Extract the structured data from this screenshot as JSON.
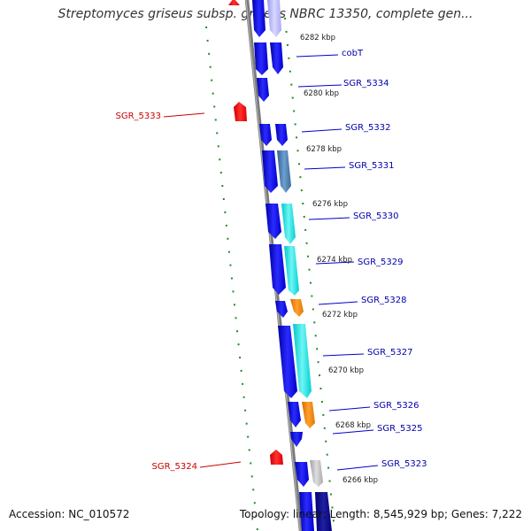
{
  "title": "Streptomyces griseus subsp. griseus NBRC 13350, complete gen...",
  "footer": {
    "accession": "Accession: NC_010572",
    "topology": "Topology: linear; Length: 8,545,929 bp; Genes: 7,222"
  },
  "scale_labels": [
    "6282 kbp",
    "6280 kbp",
    "6278 kbp",
    "6276 kbp",
    "6274 kbp",
    "6272 kbp",
    "6270 kbp",
    "6268 kbp",
    "6266 kbp"
  ],
  "genes_plus": [
    "cobT",
    "SGR_5334",
    "SGR_5332",
    "SGR_5331",
    "SGR_5330",
    "SGR_5329",
    "SGR_5328",
    "SGR_5327",
    "SGR_5326",
    "SGR_5325",
    "SGR_5323"
  ],
  "genes_minus": [
    "SGR_5333",
    "SGR_5324"
  ],
  "colors": {
    "strand": "#0000ee",
    "cyan": "#22e8e8",
    "orange": "#ff8c00",
    "steel": "#4a7fb0",
    "gray": "#bcbcbc",
    "minus_strand": "#ee0000",
    "dots": "#228b22"
  }
}
